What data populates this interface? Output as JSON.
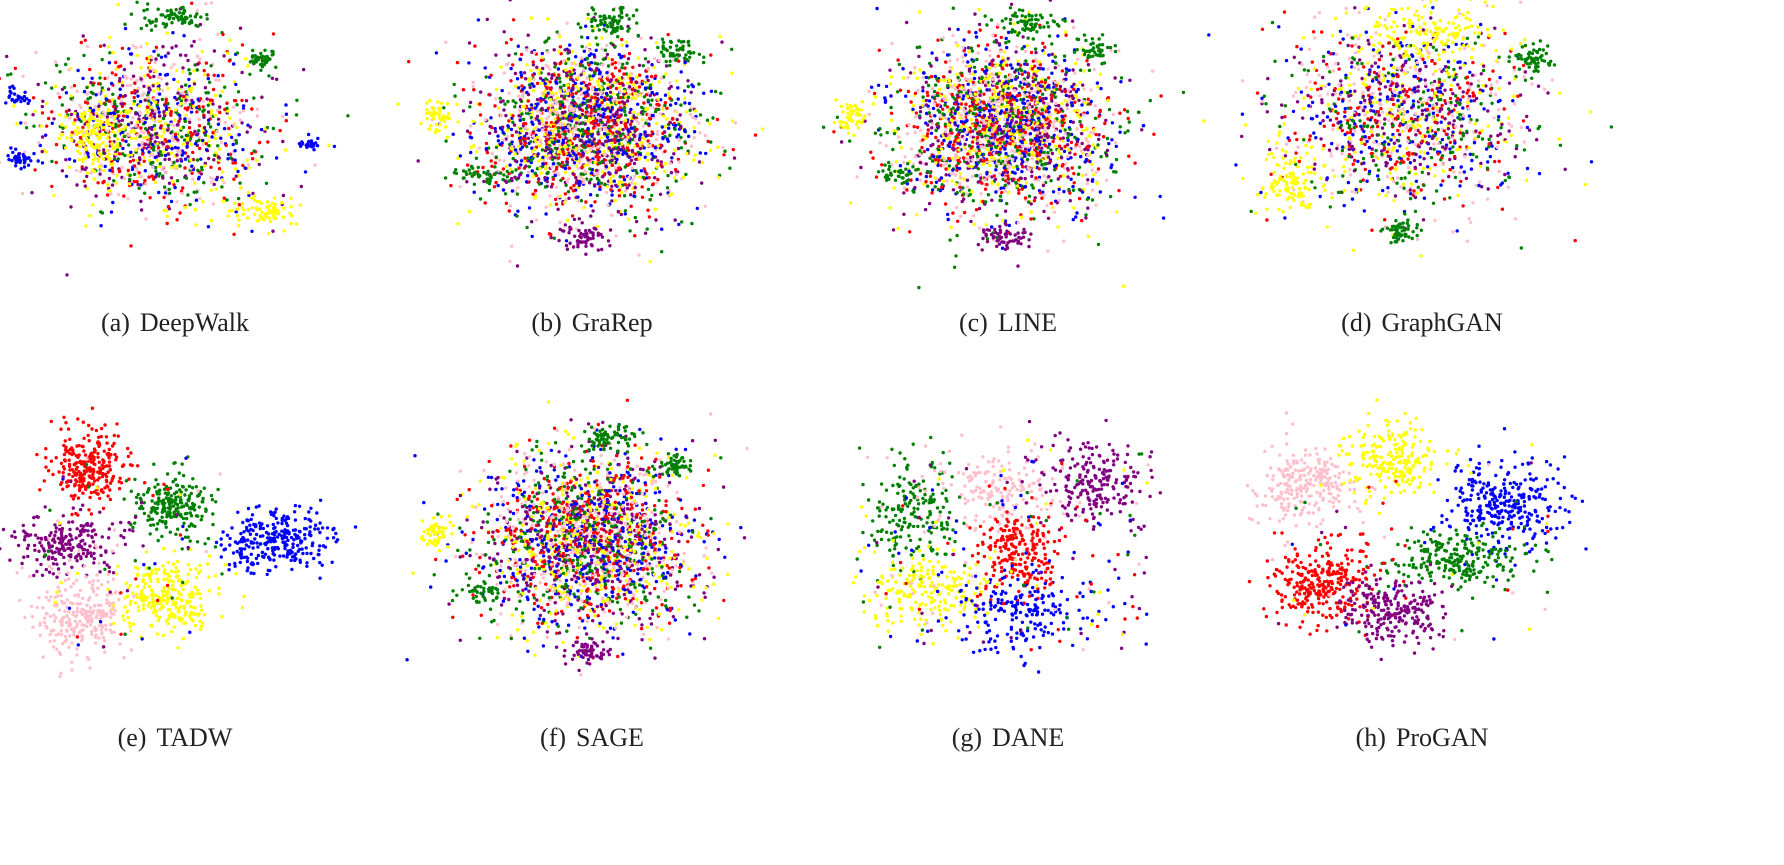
{
  "chart_data": [
    {
      "type": "scatter",
      "label": "(a)",
      "caption": "DeepWalk",
      "layout": "mixed",
      "seed": 11
    },
    {
      "type": "scatter",
      "label": "(b)",
      "caption": "GraRep",
      "layout": "dense",
      "seed": 23
    },
    {
      "type": "scatter",
      "label": "(c)",
      "caption": "LINE",
      "layout": "dense",
      "seed": 37
    },
    {
      "type": "scatter",
      "label": "(d)",
      "caption": "GraphGAN",
      "layout": "spread",
      "seed": 41
    },
    {
      "type": "scatter",
      "label": "(e)",
      "caption": "TADW",
      "layout": "clusters",
      "seed": 53
    },
    {
      "type": "scatter",
      "label": "(f)",
      "caption": "SAGE",
      "layout": "dense",
      "seed": 67
    },
    {
      "type": "scatter",
      "label": "(g)",
      "caption": "DANE",
      "layout": "semi",
      "seed": 71
    },
    {
      "type": "scatter",
      "label": "(h)",
      "caption": "ProGAN",
      "layout": "clusters2",
      "seed": 89
    }
  ],
  "colors": [
    "#ff0000",
    "#0000ff",
    "#008000",
    "#800080",
    "#ffff00",
    "#ffc0cb"
  ]
}
